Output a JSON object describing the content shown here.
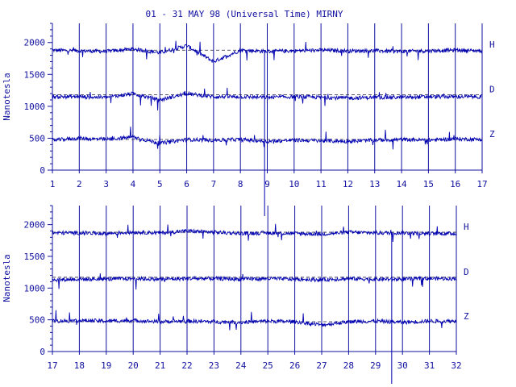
{
  "title": "01 - 31 MAY 98 (Universal Time) MIRNY",
  "colors": {
    "ink": "#1010a0",
    "background": "#ffffff"
  },
  "chart_data": [
    {
      "type": "line",
      "panel": "top",
      "ylabel": "Nanotesla",
      "y_ticks": [
        "0",
        "500",
        "1000",
        "1500",
        "2000"
      ],
      "ylim": [
        0,
        2300
      ],
      "x_ticks": [
        "1",
        "2",
        "3",
        "4",
        "5",
        "6",
        "7",
        "8",
        "9",
        "10",
        "11",
        "12",
        "13",
        "14",
        "15",
        "16",
        "17"
      ],
      "xlim": [
        1,
        17
      ],
      "grid": "vertical at each day",
      "series": [
        {
          "name": "H",
          "baseline": 1880,
          "values": [
            1880,
            1870,
            1860,
            1900,
            1840,
            1950,
            1700,
            1880,
            1860,
            1870,
            1880,
            1870,
            1870,
            1860,
            1870,
            1880,
            1870
          ]
        },
        {
          "name": "D",
          "baseline": 1180,
          "values": [
            1150,
            1150,
            1140,
            1200,
            1100,
            1200,
            1150,
            1150,
            1140,
            1150,
            1140,
            1130,
            1140,
            1140,
            1150,
            1150,
            1150
          ]
        },
        {
          "name": "Z",
          "baseline": 480,
          "values": [
            470,
            500,
            480,
            520,
            420,
            480,
            470,
            480,
            450,
            470,
            460,
            450,
            470,
            480,
            470,
            490,
            480
          ]
        }
      ]
    },
    {
      "type": "line",
      "panel": "bottom",
      "ylabel": "Nanotesla",
      "y_ticks": [
        "0",
        "500",
        "1000",
        "1500",
        "2000"
      ],
      "ylim": [
        0,
        2300
      ],
      "x_ticks": [
        "17",
        "18",
        "19",
        "20",
        "21",
        "22",
        "23",
        "24",
        "25",
        "26",
        "27",
        "28",
        "29",
        "30",
        "31",
        "32"
      ],
      "xlim": [
        17,
        32
      ],
      "grid": "vertical at each day",
      "series": [
        {
          "name": "H",
          "baseline": 1880,
          "values": [
            1870,
            1870,
            1860,
            1880,
            1870,
            1900,
            1880,
            1860,
            1870,
            1860,
            1850,
            1880,
            1870,
            1870,
            1860,
            1860
          ]
        },
        {
          "name": "D",
          "baseline": 1170,
          "values": [
            1130,
            1140,
            1140,
            1150,
            1140,
            1150,
            1150,
            1140,
            1150,
            1140,
            1130,
            1150,
            1140,
            1140,
            1150,
            1150
          ]
        },
        {
          "name": "Z",
          "baseline": 470,
          "values": [
            480,
            490,
            480,
            490,
            470,
            480,
            470,
            460,
            480,
            470,
            420,
            470,
            480,
            460,
            480,
            480
          ]
        }
      ]
    }
  ]
}
